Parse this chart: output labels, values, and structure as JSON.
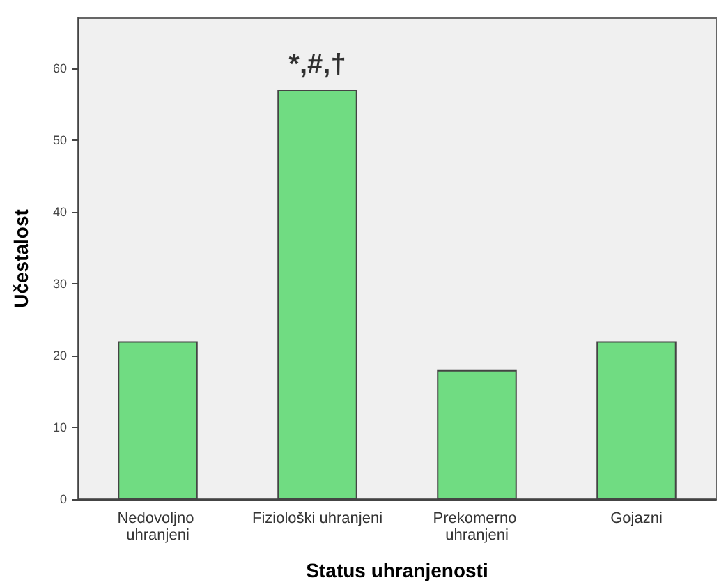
{
  "chart_data": {
    "type": "bar",
    "xlabel": "Status uhranjenosti",
    "ylabel": "Učestalost",
    "categories": [
      "Nedovoljno uhranjeni",
      "Fiziološki uhranjeni",
      "Prekomerno uhranjeni",
      "Gojazni"
    ],
    "values": [
      22,
      57,
      18,
      22
    ],
    "color": "#70dc82",
    "ylim": [
      0,
      67
    ],
    "yticks": [
      0,
      10,
      20,
      30,
      40,
      50,
      60
    ],
    "grid": false,
    "annotations": [
      {
        "text": "*,#,†",
        "x": "Fiziološki uhranjeni",
        "y": 57
      }
    ]
  }
}
